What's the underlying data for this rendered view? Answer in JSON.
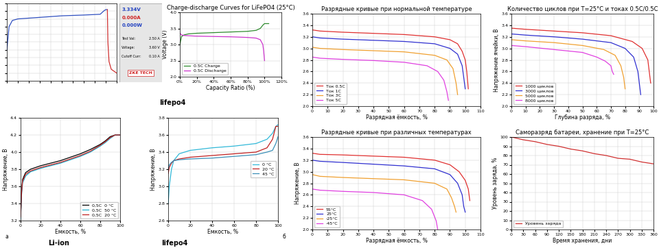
{
  "chart_data": [
    {
      "type": "line",
      "xlim": [
        0,
        100
      ],
      "ylim": [
        0,
        100
      ],
      "xticks": [
        0,
        10,
        20,
        30,
        40,
        50,
        60,
        70,
        80,
        90,
        100
      ],
      "yticks": [
        0,
        10,
        20,
        30,
        40,
        50,
        60,
        70,
        80,
        90,
        100
      ],
      "grid": true,
      "tick_labels": false,
      "series": [
        {
          "color": "#3050c0",
          "x": [
            0,
            2,
            5,
            10,
            30,
            50,
            70,
            85,
            88,
            90,
            91.5
          ],
          "values": [
            40,
            70,
            78,
            80,
            82,
            84,
            85,
            86,
            90,
            92,
            92
          ]
        },
        {
          "color": "#d03030",
          "x": [
            91.5,
            92,
            93,
            95,
            100
          ],
          "values": [
            92,
            50,
            25,
            15,
            10
          ]
        }
      ]
    },
    {
      "type": "line",
      "title": "Charge-discharge Curves for LiFePO4 (25°C)",
      "x_label": "Capacity Ratio (%)",
      "y_label": "Voltage (V)",
      "caption": "lifepo4",
      "xlim": [
        0,
        120
      ],
      "ylim": [
        2.0,
        4.0
      ],
      "xticks": [
        {
          "value": 0,
          "label": "0%"
        },
        {
          "value": 20,
          "label": "20%"
        },
        {
          "value": 40,
          "label": "40%"
        },
        {
          "value": 60,
          "label": "60%"
        },
        {
          "value": 80,
          "label": "80%"
        },
        {
          "value": 100,
          "label": "100%"
        },
        {
          "value": 120,
          "label": "120%"
        }
      ],
      "yticks": [
        2.0,
        2.5,
        3.0,
        3.5,
        4.0
      ],
      "grid": true,
      "legend": "lower left",
      "series": [
        {
          "name": "0.5C Charge",
          "color": "#2e8b2e",
          "x": [
            0,
            2,
            5,
            10,
            20,
            40,
            60,
            80,
            90,
            95,
            98,
            100,
            105
          ],
          "values": [
            3.0,
            3.25,
            3.3,
            3.33,
            3.35,
            3.37,
            3.39,
            3.41,
            3.44,
            3.5,
            3.6,
            3.65,
            3.65
          ]
        },
        {
          "name": "0.5C Discharge",
          "color": "#cc33cc",
          "x": [
            0,
            2,
            5,
            20,
            40,
            60,
            80,
            90,
            95,
            98,
            99,
            100
          ],
          "values": [
            3.35,
            3.3,
            3.28,
            3.26,
            3.25,
            3.24,
            3.22,
            3.2,
            3.15,
            3.0,
            2.8,
            2.5
          ]
        }
      ]
    },
    {
      "type": "line",
      "title": "Разрядные кривые при нормальной температуре",
      "x_label": "Разрядная ёмкость, %",
      "xlim": [
        0,
        110
      ],
      "ylim": [
        2.0,
        3.6
      ],
      "xticks": [
        0,
        10,
        20,
        30,
        40,
        50,
        60,
        70,
        80,
        90,
        100,
        110
      ],
      "yticks": [
        2.0,
        2.2,
        2.4,
        2.6,
        2.8,
        3.0,
        3.2,
        3.4,
        3.6
      ],
      "grid": true,
      "legend": "lower left",
      "series": [
        {
          "name": "Ток 0.5C",
          "color": "#e03030",
          "x": [
            0,
            5,
            20,
            40,
            60,
            80,
            90,
            95,
            98,
            100,
            101,
            102
          ],
          "values": [
            3.32,
            3.3,
            3.28,
            3.26,
            3.24,
            3.2,
            3.15,
            3.08,
            2.95,
            2.8,
            2.6,
            2.3
          ]
        },
        {
          "name": "Ток 1C",
          "color": "#3030d0",
          "x": [
            0,
            5,
            20,
            40,
            60,
            80,
            90,
            95,
            98,
            99,
            100
          ],
          "values": [
            3.2,
            3.18,
            3.16,
            3.14,
            3.12,
            3.08,
            3.0,
            2.9,
            2.7,
            2.5,
            2.3
          ]
        },
        {
          "name": "Ток 3C",
          "color": "#f0a030",
          "x": [
            0,
            5,
            20,
            40,
            60,
            80,
            88,
            92,
            94,
            95
          ],
          "values": [
            3.02,
            3.0,
            2.98,
            2.96,
            2.94,
            2.88,
            2.8,
            2.65,
            2.4,
            2.2
          ]
        },
        {
          "name": "Ток 5C",
          "color": "#e040e0",
          "x": [
            0,
            5,
            20,
            40,
            60,
            75,
            82,
            86,
            88,
            89
          ],
          "values": [
            2.85,
            2.83,
            2.81,
            2.79,
            2.76,
            2.7,
            2.6,
            2.45,
            2.25,
            2.1
          ]
        }
      ]
    },
    {
      "type": "line",
      "title": "Количество циклов при T=25°C и токах 0.5C/0.5C",
      "x_label": "Глубина разряда, %",
      "y_label": "Напряжение ячейки, В",
      "xlim": [
        0,
        100
      ],
      "ylim": [
        2.0,
        3.6
      ],
      "xticks": [
        0,
        10,
        20,
        30,
        40,
        50,
        60,
        70,
        80,
        90,
        100
      ],
      "yticks": [
        2.0,
        2.2,
        2.4,
        2.6,
        2.8,
        3.0,
        3.2,
        3.4,
        3.6
      ],
      "grid": true,
      "legend": "lower left",
      "series": [
        {
          "name": "1000 циклов",
          "color": "#e03030",
          "x": [
            0,
            10,
            30,
            50,
            70,
            85,
            92,
            96,
            98
          ],
          "values": [
            3.35,
            3.33,
            3.3,
            3.27,
            3.22,
            3.12,
            3.0,
            2.8,
            2.4
          ]
        },
        {
          "name": "3000 циклов",
          "color": "#3030d0",
          "x": [
            0,
            10,
            30,
            50,
            70,
            80,
            86,
            89,
            91
          ],
          "values": [
            3.25,
            3.23,
            3.2,
            3.16,
            3.1,
            3.0,
            2.85,
            2.6,
            2.2
          ]
        },
        {
          "name": "5000 циклов",
          "color": "#f0a030",
          "x": [
            0,
            10,
            30,
            50,
            65,
            73,
            77,
            79,
            80
          ],
          "values": [
            3.15,
            3.13,
            3.1,
            3.05,
            2.98,
            2.88,
            2.7,
            2.5,
            2.3
          ]
        },
        {
          "name": "8000 циклов",
          "color": "#e040e0",
          "x": [
            0,
            10,
            30,
            50,
            60,
            66,
            70,
            71,
            72
          ],
          "values": [
            3.05,
            3.03,
            2.98,
            2.93,
            2.85,
            2.78,
            2.7,
            2.6,
            2.55
          ]
        }
      ]
    },
    {
      "type": "line",
      "x_label": "Емкость, %",
      "y_label": "Напряжение, В",
      "caption": "Li-ion",
      "panel_label": "а",
      "xlim": [
        0,
        100
      ],
      "ylim": [
        3.2,
        4.4
      ],
      "xticks": [
        0,
        20,
        40,
        60,
        80,
        100
      ],
      "yticks": [
        3.2,
        3.4,
        3.6,
        3.8,
        4.0,
        4.2,
        4.4
      ],
      "grid": true,
      "legend": "lower right",
      "series": [
        {
          "name": "0,5C  0 °C",
          "color": "#000000",
          "x": [
            0,
            1,
            2,
            5,
            10,
            20,
            30,
            40,
            50,
            60,
            70,
            80,
            85,
            90,
            95,
            100
          ],
          "values": [
            3.25,
            3.55,
            3.68,
            3.76,
            3.8,
            3.84,
            3.87,
            3.9,
            3.94,
            3.98,
            4.03,
            4.09,
            4.13,
            4.18,
            4.2,
            4.2
          ]
        },
        {
          "name": "0,5C  50 °C",
          "color": "#20b0d0",
          "x": [
            0,
            1,
            2,
            5,
            10,
            20,
            30,
            40,
            50,
            60,
            70,
            80,
            85,
            90,
            95,
            100
          ],
          "values": [
            3.22,
            3.5,
            3.64,
            3.72,
            3.77,
            3.81,
            3.84,
            3.87,
            3.91,
            3.95,
            4.0,
            4.07,
            4.11,
            4.16,
            4.2,
            4.2
          ]
        },
        {
          "name": "0,5C  20 °C",
          "color": "#c02020",
          "x": [
            0,
            1,
            2,
            5,
            10,
            20,
            30,
            40,
            50,
            60,
            70,
            80,
            85,
            90,
            95,
            100
          ],
          "values": [
            3.24,
            3.53,
            3.66,
            3.74,
            3.78,
            3.82,
            3.85,
            3.88,
            3.92,
            3.96,
            4.01,
            4.08,
            4.12,
            4.17,
            4.2,
            4.2
          ]
        }
      ]
    },
    {
      "type": "line",
      "x_label": "Емкость, %",
      "y_label": "Напряжение, В",
      "caption": "lifepo4",
      "panel_label": "б",
      "xlim": [
        0,
        100
      ],
      "ylim": [
        2.6,
        3.8
      ],
      "xticks": [
        0,
        20,
        40,
        60,
        80,
        100
      ],
      "yticks": [
        2.6,
        2.8,
        3.0,
        3.2,
        3.4,
        3.6,
        3.8
      ],
      "grid": true,
      "legend": "center right",
      "series": [
        {
          "name": "0 °C",
          "color": "#30b8d8",
          "x": [
            0,
            1,
            3,
            5,
            10,
            20,
            40,
            60,
            80,
            90,
            95,
            98,
            100
          ],
          "values": [
            2.8,
            3.0,
            3.2,
            3.3,
            3.38,
            3.42,
            3.45,
            3.47,
            3.5,
            3.55,
            3.62,
            3.7,
            3.72
          ]
        },
        {
          "name": "20 °C",
          "color": "#c02020",
          "x": [
            0,
            1,
            3,
            5,
            10,
            20,
            40,
            60,
            80,
            90,
            95,
            98,
            100
          ],
          "values": [
            3.15,
            3.22,
            3.27,
            3.3,
            3.32,
            3.34,
            3.36,
            3.38,
            3.4,
            3.45,
            3.55,
            3.7,
            3.7
          ]
        },
        {
          "name": "45 °C",
          "color": "#3a8fb7",
          "x": [
            0,
            1,
            3,
            5,
            10,
            20,
            40,
            60,
            80,
            90,
            95,
            98,
            100
          ],
          "values": [
            3.2,
            3.25,
            3.28,
            3.3,
            3.31,
            3.32,
            3.33,
            3.35,
            3.37,
            3.4,
            3.42,
            3.5,
            3.58
          ]
        }
      ]
    },
    {
      "type": "line",
      "title": "Разрядные кривые при различных температурах",
      "x_label": "Разрядная ёмкость, %",
      "y_label": "Напряжение, В",
      "xlim": [
        0,
        110
      ],
      "ylim": [
        2.0,
        3.6
      ],
      "xticks": [
        0,
        10,
        20,
        30,
        40,
        50,
        60,
        70,
        80,
        90,
        100,
        110
      ],
      "yticks": [
        2.0,
        2.2,
        2.4,
        2.6,
        2.8,
        3.0,
        3.2,
        3.4,
        3.6
      ],
      "grid": true,
      "legend": "lower left",
      "series": [
        {
          "name": "55°C",
          "color": "#e03030",
          "x": [
            0,
            5,
            20,
            40,
            60,
            80,
            90,
            96,
            100,
            102,
            103
          ],
          "values": [
            3.32,
            3.3,
            3.29,
            3.27,
            3.25,
            3.2,
            3.12,
            3.0,
            2.85,
            2.7,
            2.5
          ]
        },
        {
          "name": "25°C",
          "color": "#3030d0",
          "x": [
            0,
            5,
            20,
            40,
            60,
            80,
            90,
            95,
            98,
            99,
            100
          ],
          "values": [
            3.2,
            3.18,
            3.16,
            3.13,
            3.1,
            3.05,
            2.95,
            2.8,
            2.6,
            2.4,
            2.3
          ]
        },
        {
          "name": "-25°C",
          "color": "#f0a030",
          "x": [
            0,
            5,
            20,
            40,
            60,
            80,
            88,
            91,
            93,
            94
          ],
          "values": [
            2.95,
            2.92,
            2.9,
            2.88,
            2.86,
            2.8,
            2.7,
            2.55,
            2.4,
            2.3
          ]
        },
        {
          "name": "-45°C",
          "color": "#e040e0",
          "x": [
            0,
            5,
            20,
            40,
            60,
            72,
            78,
            81,
            82
          ],
          "values": [
            2.7,
            2.68,
            2.66,
            2.64,
            2.6,
            2.5,
            2.35,
            2.15,
            2.0
          ]
        }
      ]
    },
    {
      "type": "line",
      "title": "Саморазряд батареи, хранение при T=25°C",
      "x_label": "Время хранения, дни",
      "y_label": "Уровень заряда, %",
      "xlim": [
        0,
        360
      ],
      "ylim": [
        0,
        100
      ],
      "xticks": [
        0,
        30,
        60,
        90,
        120,
        150,
        180,
        210,
        240,
        270,
        300,
        330,
        360
      ],
      "yticks": [
        0,
        10,
        20,
        30,
        40,
        50,
        60,
        70,
        80,
        90,
        100
      ],
      "grid": true,
      "legend": "lower left",
      "series": [
        {
          "name": "Уровень заряда",
          "color": "#d03030",
          "x": [
            0,
            30,
            60,
            90,
            120,
            150,
            180,
            210,
            240,
            270,
            300,
            330,
            360
          ],
          "values": [
            100,
            97,
            95,
            92,
            90,
            87,
            85,
            82,
            80,
            77,
            76,
            73,
            71
          ]
        }
      ]
    }
  ],
  "screenshot": {
    "readings": [
      "3.334V",
      "0.000A",
      "0.000W"
    ],
    "settings": [
      [
        "Test Val:",
        "2.50 A"
      ],
      [
        "Voltage:",
        "3.60 V"
      ],
      [
        "Cutoff Curr:",
        "0.10 A"
      ]
    ],
    "brand": "ZKE TECH"
  }
}
